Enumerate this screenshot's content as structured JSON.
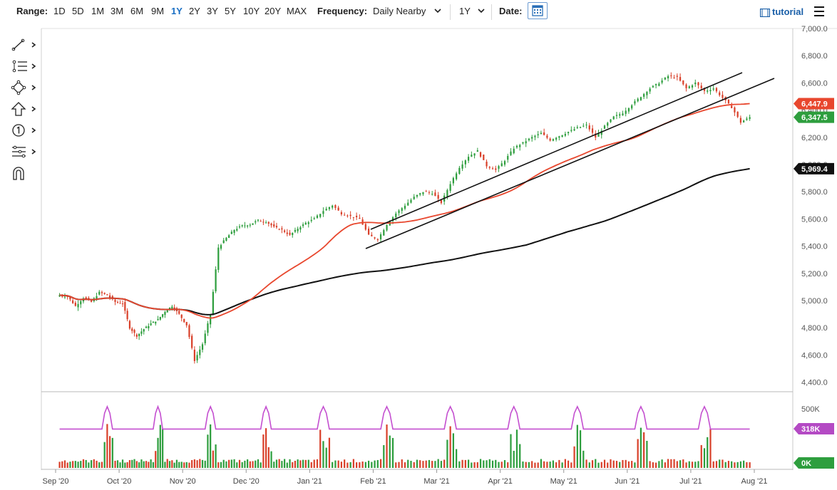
{
  "toolbar": {
    "range_label": "Range:",
    "ranges": [
      "1D",
      "5D",
      "1M",
      "3M",
      "6M",
      "9M",
      "1Y",
      "2Y",
      "3Y",
      "5Y",
      "10Y",
      "20Y",
      "MAX"
    ],
    "active_range": "1Y",
    "frequency_label": "Frequency:",
    "frequency_value": "Daily Nearby",
    "period_value": "1Y",
    "date_label": "Date:",
    "tutorial_label": "tutorial"
  },
  "sidebar": {
    "tools": [
      "line-tool-icon",
      "fibonacci-tool-icon",
      "shape-tool-icon",
      "arrow-tool-icon",
      "number-tool-icon",
      "pattern-tool-icon",
      "magnet-icon"
    ]
  },
  "colors": {
    "up": "#2e9e3e",
    "down": "#d9412b",
    "ma_red": "#e8472e",
    "ma_black": "#111111",
    "oi_line": "#c44fd0",
    "price_tag_up": "#2e9e3e",
    "price_tag_red": "#e8472e",
    "price_tag_black": "#111111",
    "oi_tag": "#b44ac4",
    "accent": "#1a6fc4"
  },
  "chart_data": {
    "type": "candlestick",
    "x_labels": [
      "Sep '20",
      "Oct '20",
      "Nov '20",
      "Dec '20",
      "Jan '21",
      "Feb '21",
      "Mar '21",
      "Apr '21",
      "May '21",
      "Jun '21",
      "Jul '21",
      "Aug '21"
    ],
    "y_ticks": [
      "7,000.0",
      "6,800.0",
      "6,600.0",
      "6,400.0",
      "6,200.0",
      "6,000.0",
      "5,800.0",
      "5,600.0",
      "5,400.0",
      "5,200.0",
      "5,000.0",
      "4,800.0",
      "4,600.0",
      "4,400.0"
    ],
    "ylim": [
      4330,
      7000
    ],
    "series": [
      {
        "month": "Sep '20",
        "close_points": [
          5040,
          5030,
          4960,
          5020,
          4990,
          5060,
          5040,
          4990
        ]
      },
      {
        "month": "Oct '20",
        "close_points": [
          4980,
          4800,
          4740,
          4790,
          4830,
          4860,
          4920,
          4960,
          4900
        ]
      },
      {
        "month": "Nov '20",
        "close_points": [
          4820,
          4560,
          4680,
          4900,
          5390,
          5460,
          5520,
          5550
        ]
      },
      {
        "month": "Dec '20",
        "close_points": [
          5560,
          5590,
          5580,
          5540,
          5520,
          5480,
          5530,
          5570
        ]
      },
      {
        "month": "Jan '21",
        "close_points": [
          5600,
          5660,
          5700,
          5640,
          5620,
          5600,
          5480
        ]
      },
      {
        "month": "Feb '21",
        "close_points": [
          5450,
          5560,
          5640,
          5700,
          5760,
          5800,
          5790
        ]
      },
      {
        "month": "Mar '21",
        "close_points": [
          5720,
          5860,
          5980,
          6060,
          6100,
          5990,
          5960
        ]
      },
      {
        "month": "Apr '21",
        "close_points": [
          6030,
          6120,
          6160,
          6200,
          6230,
          6180,
          6210
        ]
      },
      {
        "month": "May '21",
        "close_points": [
          6240,
          6270,
          6290,
          6200,
          6280,
          6350,
          6380
        ]
      },
      {
        "month": "Jun '21",
        "close_points": [
          6440,
          6500,
          6560,
          6600,
          6650,
          6640,
          6560
        ]
      },
      {
        "month": "Jul '21",
        "close_points": [
          6600,
          6540,
          6560,
          6490,
          6420,
          6310,
          6347.5
        ]
      }
    ],
    "ma_50_last": 6447.9,
    "ma_200_last": 5969.4,
    "last_price": 6347.5,
    "price_tags": {
      "ma_50": "6,447.9",
      "last": "6,347.5",
      "ma_200": "5,969.4"
    },
    "volume_axis": {
      "labels": [
        "500K",
        "0K"
      ],
      "oi_tag": "318K",
      "volume_tag": "0K"
    }
  }
}
